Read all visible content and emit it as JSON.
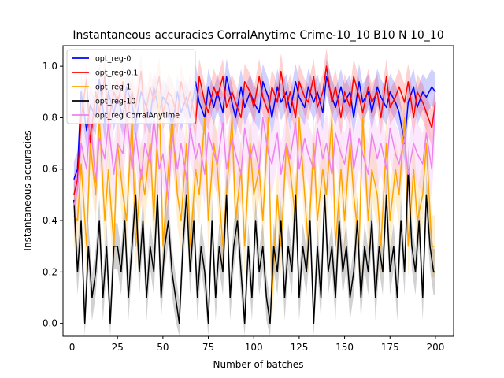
{
  "chart_data": {
    "type": "line",
    "title": "Instantaneous accuracies CorralAnytime Crime-10_10 B10 N 10_10",
    "xlabel": "Number of batches",
    "ylabel": "Instantaneous accuracies",
    "xlim": [
      -5,
      210
    ],
    "ylim": [
      -0.05,
      1.08
    ],
    "xticks": [
      0,
      25,
      50,
      75,
      100,
      125,
      150,
      175,
      200
    ],
    "yticks": [
      0.0,
      0.2,
      0.4,
      0.6,
      0.8,
      1.0
    ],
    "grid": false,
    "legend_position": "top-left",
    "series": [
      {
        "name": "opt_reg-0",
        "color": "#0000ff",
        "x": [
          1,
          3,
          5,
          8,
          10,
          13,
          15,
          18,
          20,
          23,
          25,
          28,
          30,
          33,
          35,
          38,
          40,
          43,
          45,
          48,
          50,
          53,
          55,
          58,
          60,
          63,
          65,
          68,
          70,
          73,
          75,
          78,
          80,
          83,
          85,
          88,
          90,
          93,
          95,
          98,
          100,
          103,
          105,
          108,
          110,
          113,
          115,
          118,
          120,
          123,
          125,
          128,
          130,
          133,
          135,
          138,
          140,
          143,
          145,
          148,
          150,
          153,
          155,
          158,
          160,
          163,
          165,
          168,
          170,
          173,
          175,
          178,
          180,
          183,
          185,
          188,
          190,
          193,
          195,
          198,
          200
        ],
        "y": [
          0.56,
          0.6,
          0.9,
          0.75,
          0.85,
          0.8,
          0.95,
          0.78,
          0.9,
          0.82,
          0.88,
          0.8,
          0.92,
          0.85,
          0.78,
          0.9,
          0.86,
          0.8,
          0.92,
          0.82,
          0.88,
          0.85,
          0.76,
          0.9,
          0.82,
          0.88,
          0.8,
          0.94,
          0.86,
          0.8,
          0.92,
          0.84,
          0.9,
          0.82,
          0.96,
          0.86,
          0.8,
          0.92,
          0.84,
          0.9,
          0.86,
          0.82,
          0.94,
          0.88,
          0.8,
          0.92,
          0.86,
          0.9,
          0.82,
          0.94,
          0.88,
          0.84,
          0.92,
          0.86,
          0.9,
          0.82,
          0.96,
          0.88,
          0.84,
          0.92,
          0.86,
          0.9,
          0.8,
          0.94,
          0.86,
          0.9,
          0.82,
          0.92,
          0.88,
          0.84,
          0.9,
          0.86,
          0.82,
          0.7,
          0.86,
          0.92,
          0.84,
          0.9,
          0.88,
          0.92,
          0.9
        ]
      },
      {
        "name": "opt_reg-0.1",
        "color": "#ff0000",
        "x": [
          1,
          3,
          5,
          8,
          10,
          13,
          15,
          18,
          20,
          23,
          25,
          28,
          30,
          33,
          35,
          38,
          40,
          43,
          45,
          48,
          50,
          53,
          55,
          58,
          60,
          63,
          65,
          68,
          70,
          73,
          75,
          78,
          80,
          83,
          85,
          88,
          90,
          93,
          95,
          98,
          100,
          103,
          105,
          108,
          110,
          113,
          115,
          118,
          120,
          123,
          125,
          128,
          130,
          133,
          135,
          138,
          140,
          143,
          145,
          148,
          150,
          153,
          155,
          158,
          160,
          163,
          165,
          168,
          170,
          173,
          175,
          178,
          180,
          183,
          185,
          188,
          190,
          193,
          195,
          198,
          200
        ],
        "y": [
          0.5,
          0.56,
          0.8,
          0.95,
          0.7,
          0.9,
          0.82,
          0.96,
          0.78,
          0.9,
          0.86,
          0.94,
          0.8,
          0.9,
          0.84,
          0.98,
          0.8,
          0.92,
          0.86,
          0.96,
          0.82,
          0.9,
          0.88,
          0.8,
          0.94,
          0.84,
          0.9,
          0.78,
          0.96,
          0.86,
          0.82,
          0.92,
          0.88,
          0.96,
          0.84,
          0.9,
          0.86,
          0.8,
          0.94,
          0.9,
          0.84,
          0.96,
          0.88,
          0.82,
          0.92,
          0.86,
          0.98,
          0.84,
          0.9,
          0.8,
          0.94,
          0.88,
          0.86,
          0.96,
          0.84,
          0.9,
          1.0,
          0.86,
          0.92,
          0.8,
          0.9,
          0.84,
          0.96,
          0.88,
          0.82,
          0.92,
          0.86,
          0.9,
          0.8,
          0.96,
          0.84,
          0.88,
          0.92,
          0.86,
          0.94,
          0.8,
          0.9,
          0.86,
          0.82,
          0.76,
          0.86
        ]
      },
      {
        "name": "opt_reg-1",
        "color": "#ffa500",
        "x": [
          1,
          3,
          5,
          8,
          10,
          13,
          15,
          18,
          20,
          23,
          25,
          28,
          30,
          33,
          35,
          38,
          40,
          43,
          45,
          48,
          50,
          53,
          55,
          58,
          60,
          63,
          65,
          68,
          70,
          73,
          75,
          78,
          80,
          83,
          85,
          88,
          90,
          93,
          95,
          98,
          100,
          103,
          105,
          108,
          110,
          113,
          115,
          118,
          120,
          123,
          125,
          128,
          130,
          133,
          135,
          138,
          140,
          143,
          145,
          148,
          150,
          153,
          155,
          158,
          160,
          163,
          165,
          168,
          170,
          173,
          175,
          178,
          180,
          183,
          185,
          188,
          190,
          193,
          195,
          198,
          200
        ],
        "y": [
          0.42,
          0.4,
          0.62,
          0.3,
          0.7,
          0.5,
          0.8,
          0.4,
          0.6,
          0.3,
          0.7,
          0.5,
          0.4,
          0.8,
          0.3,
          0.6,
          0.5,
          0.7,
          0.4,
          0.9,
          0.3,
          0.6,
          0.8,
          0.5,
          0.4,
          0.7,
          0.3,
          0.6,
          0.5,
          0.8,
          0.4,
          0.7,
          0.6,
          0.3,
          0.5,
          0.8,
          0.4,
          0.6,
          0.3,
          0.7,
          0.5,
          0.6,
          0.4,
          0.8,
          0.1,
          0.5,
          0.3,
          0.7,
          0.6,
          0.4,
          0.8,
          0.5,
          0.3,
          0.7,
          0.4,
          0.6,
          0.5,
          0.8,
          0.3,
          0.6,
          0.4,
          0.7,
          0.5,
          0.3,
          0.8,
          0.4,
          0.6,
          0.5,
          0.3,
          0.7,
          0.4,
          0.6,
          0.5,
          0.8,
          0.3,
          0.6,
          0.4,
          0.5,
          0.7,
          0.3,
          0.3
        ]
      },
      {
        "name": "opt_reg-10",
        "color": "#000000",
        "x": [
          1,
          3,
          5,
          7,
          9,
          11,
          13,
          15,
          17,
          19,
          21,
          23,
          25,
          27,
          29,
          31,
          33,
          35,
          37,
          39,
          41,
          43,
          45,
          47,
          49,
          51,
          53,
          55,
          57,
          59,
          61,
          63,
          65,
          67,
          69,
          71,
          73,
          75,
          77,
          79,
          81,
          83,
          85,
          87,
          89,
          91,
          93,
          95,
          97,
          99,
          101,
          103,
          105,
          107,
          109,
          111,
          113,
          115,
          117,
          119,
          121,
          123,
          125,
          127,
          129,
          131,
          133,
          135,
          137,
          139,
          141,
          143,
          145,
          147,
          149,
          151,
          153,
          155,
          157,
          159,
          161,
          163,
          165,
          167,
          169,
          171,
          173,
          175,
          177,
          179,
          181,
          183,
          185,
          187,
          189,
          191,
          193,
          195,
          197,
          199,
          200
        ],
        "y": [
          0.48,
          0.2,
          0.4,
          0.0,
          0.3,
          0.1,
          0.2,
          0.4,
          0.1,
          0.3,
          0.0,
          0.3,
          0.3,
          0.2,
          0.4,
          0.1,
          0.3,
          0.5,
          0.2,
          0.4,
          0.1,
          0.3,
          0.2,
          0.5,
          0.1,
          0.3,
          0.4,
          0.2,
          0.1,
          0.0,
          0.3,
          0.5,
          0.2,
          0.4,
          0.1,
          0.3,
          0.2,
          0.0,
          0.4,
          0.1,
          0.3,
          0.2,
          0.5,
          0.1,
          0.3,
          0.4,
          0.2,
          0.0,
          0.3,
          0.1,
          0.4,
          0.2,
          0.3,
          0.1,
          0.0,
          0.3,
          0.2,
          0.4,
          0.1,
          0.3,
          0.2,
          0.5,
          0.1,
          0.3,
          0.2,
          0.4,
          0.0,
          0.3,
          0.1,
          0.5,
          0.2,
          0.3,
          0.1,
          0.4,
          0.2,
          0.3,
          0.1,
          0.2,
          0.4,
          0.1,
          0.3,
          0.2,
          0.4,
          0.1,
          0.3,
          0.2,
          0.5,
          0.2,
          0.3,
          0.1,
          0.4,
          0.2,
          0.6,
          0.3,
          0.2,
          0.4,
          0.1,
          0.5,
          0.3,
          0.2,
          0.2
        ]
      },
      {
        "name": "opt_reg CorralAnytime",
        "color": "#ee82ee",
        "x": [
          1,
          3,
          5,
          8,
          10,
          13,
          15,
          18,
          20,
          23,
          25,
          28,
          30,
          33,
          35,
          38,
          40,
          43,
          45,
          48,
          50,
          53,
          55,
          58,
          60,
          63,
          65,
          68,
          70,
          73,
          75,
          78,
          80,
          83,
          85,
          88,
          90,
          93,
          95,
          98,
          100,
          103,
          105,
          108,
          110,
          113,
          115,
          118,
          120,
          123,
          125,
          128,
          130,
          133,
          135,
          138,
          140,
          143,
          145,
          148,
          150,
          153,
          155,
          158,
          160,
          163,
          165,
          168,
          170,
          173,
          175,
          178,
          180,
          183,
          185,
          188,
          190,
          193,
          195,
          198,
          200
        ],
        "y": [
          0.46,
          0.52,
          0.7,
          0.6,
          0.8,
          0.55,
          0.72,
          0.64,
          0.78,
          0.58,
          0.7,
          0.66,
          0.82,
          0.6,
          0.74,
          0.56,
          0.7,
          0.62,
          0.8,
          0.6,
          0.66,
          0.48,
          0.74,
          0.6,
          0.7,
          0.56,
          0.76,
          0.64,
          0.7,
          0.58,
          0.74,
          0.66,
          0.62,
          0.78,
          0.6,
          0.72,
          0.66,
          0.58,
          0.76,
          0.64,
          0.7,
          0.6,
          0.8,
          0.66,
          0.62,
          0.74,
          0.58,
          0.7,
          0.64,
          0.78,
          0.6,
          0.72,
          0.66,
          0.6,
          0.76,
          0.64,
          0.7,
          0.58,
          0.74,
          0.66,
          0.62,
          0.76,
          0.6,
          0.72,
          0.66,
          0.58,
          0.74,
          0.64,
          0.7,
          0.6,
          0.76,
          0.66,
          0.62,
          0.72,
          0.58,
          0.7,
          0.66,
          0.62,
          0.74,
          0.6,
          0.86
        ]
      }
    ]
  }
}
